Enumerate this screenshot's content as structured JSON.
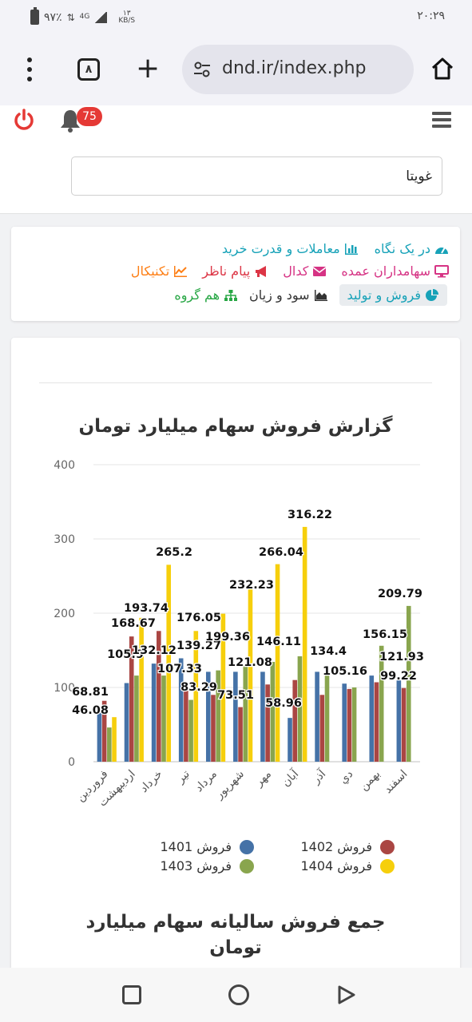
{
  "status_bar": {
    "battery": "۹۷٪",
    "network": "4G",
    "speed_value": "۱۳",
    "speed_unit": "KB/S",
    "time": "۲۰:۲۹"
  },
  "browser": {
    "tab_count": "۸",
    "url": "dnd.ir/index.php"
  },
  "header": {
    "notification_count": "75",
    "search_value": "غویتا"
  },
  "nav": {
    "row1": [
      {
        "label": "در یک نگاه",
        "icon": "dashboard-icon",
        "color": "#17a2b8"
      },
      {
        "label": "معاملات و قدرت خرید",
        "icon": "bar-chart-icon",
        "color": "#17a2b8"
      }
    ],
    "row2": [
      {
        "label": "سهامداران عمده",
        "icon": "desktop-icon",
        "color": "#d63384"
      },
      {
        "label": "کدال",
        "icon": "envelope-icon",
        "color": "#d63384"
      },
      {
        "label": "پیام ناظر",
        "icon": "bullhorn-icon",
        "color": "#dc3545"
      },
      {
        "label": "تکنیکال",
        "icon": "line-chart-icon",
        "color": "#fd7e14"
      }
    ],
    "row3": [
      {
        "label": "فروش و تولید",
        "icon": "pie-chart-icon",
        "color": "#17a2b8"
      },
      {
        "label": "سود و زیان",
        "icon": "area-chart-icon",
        "color": "#333333"
      },
      {
        "label": "هم گروه",
        "icon": "sitemap-icon",
        "color": "#28a745"
      }
    ]
  },
  "chart_data": {
    "type": "bar",
    "title": "گزارش فروش سهام میلیارد تومان",
    "categories": [
      "فروردین",
      "اردیبهشت",
      "خرداد",
      "تیر",
      "مرداد",
      "شهریور",
      "مهر",
      "آبان",
      "آذر",
      "دي",
      "بهمن",
      "اسفند"
    ],
    "yticks": [
      "0",
      "100",
      "200",
      "300",
      "400"
    ],
    "ylim": [
      0,
      400
    ],
    "grid": true,
    "legend_position": "bottom",
    "series": [
      {
        "name": "فروش 1401",
        "color": "#4572a7",
        "values": [
          68.81,
          105.9,
          132.12,
          139.27,
          121.08,
          121.08,
          121.08,
          58.96,
          121.08,
          105.16,
          116.0,
          110.0
        ]
      },
      {
        "name": "فروش 1402",
        "color": "#aa4643",
        "values": [
          82.0,
          168.67,
          176.05,
          96.0,
          90.0,
          73.51,
          104.0,
          110.0,
          90.0,
          98.0,
          107.0,
          99.22
        ]
      },
      {
        "name": "فروش 1403",
        "color": "#89a54e",
        "values": [
          46.08,
          116.0,
          116.0,
          83.29,
          123.0,
          130.0,
          134.4,
          142.0,
          119.0,
          100.0,
          156.15,
          209.79
        ]
      },
      {
        "name": "فروش 1404",
        "color": "#f6cf0c",
        "values": [
          60.0,
          193.74,
          265.2,
          176.05,
          199.36,
          232.23,
          266.04,
          316.22,
          null,
          null,
          null,
          null
        ]
      }
    ],
    "data_labels": [
      "68.81",
      "46.08",
      "105.9",
      "168.67",
      "193.74",
      "132.12",
      "265.2",
      "107.33",
      "176.05",
      "139.27",
      "83.29",
      "199.36",
      "73.51",
      "232.23",
      "121.08",
      "266.04",
      "146.11",
      "58.96",
      "316.22",
      "134.4",
      "105.16",
      "156.15",
      "121.93",
      "99.22",
      "209.79"
    ]
  },
  "chart2": {
    "title": "جمع فروش سالیانه سهام میلیارد تومان"
  }
}
